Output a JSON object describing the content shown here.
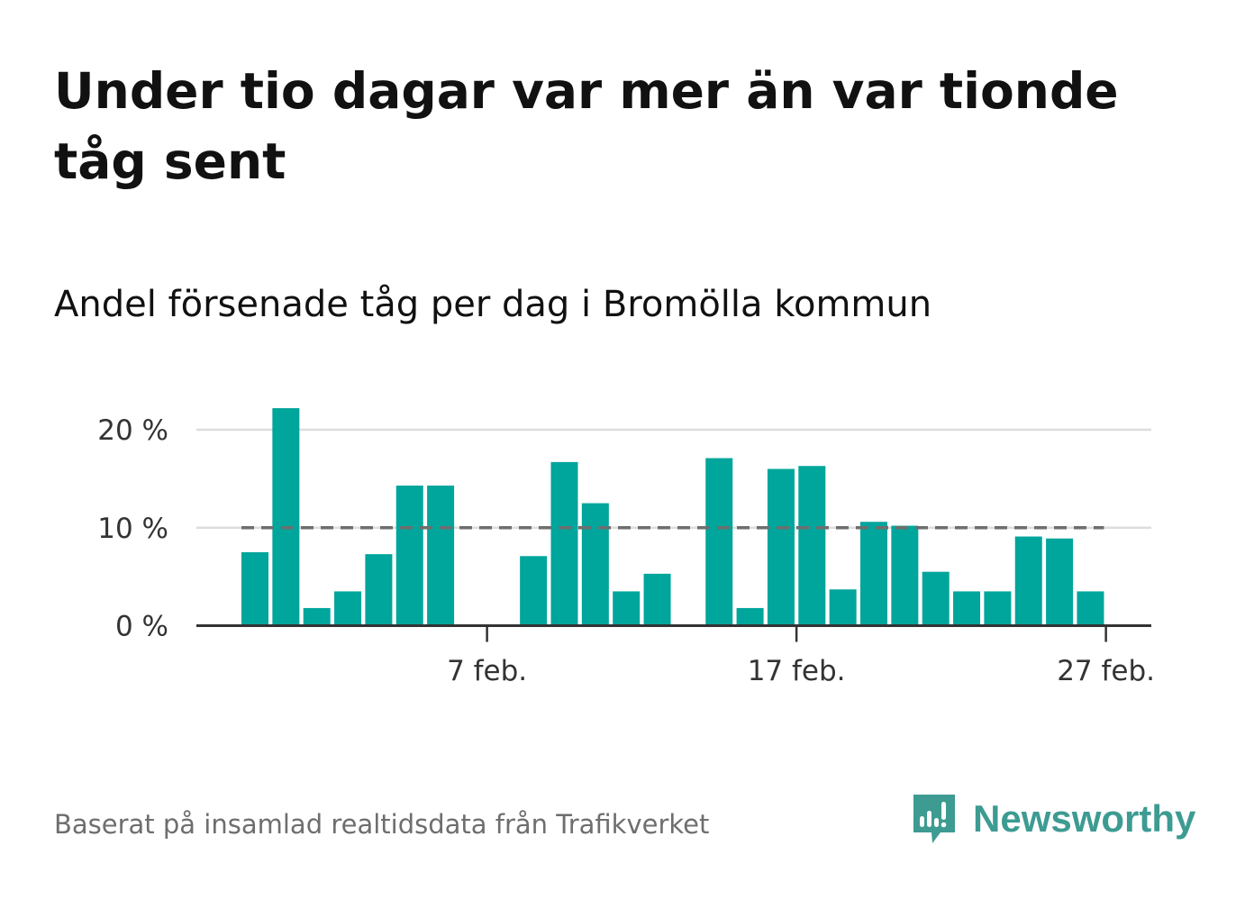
{
  "title": "Under tio dagar var mer än var tionde tåg sent",
  "subtitle": "Andel försenade tåg per dag i Bromölla kommun",
  "footer": "Baserat på insamlad realtidsdata från Trafikverket",
  "brand": {
    "name": "Newsworthy",
    "icon": "newsworthy-logo-icon",
    "color": "#3d9b92"
  },
  "colors": {
    "bar": "#00a59b",
    "reference": "#6e6e6e",
    "grid": "#dddddd",
    "axis": "#333333"
  },
  "chart_data": {
    "type": "bar",
    "title": "Under tio dagar var mer än var tionde tåg sent",
    "subtitle": "Andel försenade tåg per dag i Bromölla kommun",
    "xlabel": "",
    "ylabel": "",
    "categories": [
      "2025-01-30",
      "2025-01-31",
      "2025-02-01",
      "2025-02-02",
      "2025-02-03",
      "2025-02-04",
      "2025-02-05",
      "2025-02-06",
      "2025-02-07",
      "2025-02-08",
      "2025-02-09",
      "2025-02-10",
      "2025-02-11",
      "2025-02-12",
      "2025-02-13",
      "2025-02-14",
      "2025-02-15",
      "2025-02-16",
      "2025-02-17",
      "2025-02-18",
      "2025-02-19",
      "2025-02-20",
      "2025-02-21",
      "2025-02-22",
      "2025-02-23",
      "2025-02-24",
      "2025-02-25",
      "2025-02-26",
      "2025-02-27",
      "2025-02-28"
    ],
    "values": [
      7.5,
      22.2,
      1.8,
      3.5,
      7.3,
      14.3,
      14.3,
      0,
      0,
      7.1,
      16.7,
      12.5,
      3.5,
      5.3,
      0,
      17.1,
      1.8,
      16.0,
      16.3,
      3.7,
      10.6,
      10.2,
      5.5,
      3.5,
      3.5,
      9.1,
      8.9,
      3.5,
      null,
      null
    ],
    "reference_line": {
      "value": 10,
      "style": "dashed"
    },
    "x_ticks": [
      {
        "index": 8,
        "label": "7 feb."
      },
      {
        "index": 18,
        "label": "17 feb."
      },
      {
        "index": 28,
        "label": "27 feb."
      }
    ],
    "y_ticks": [
      {
        "value": 0,
        "label": "0 %"
      },
      {
        "value": 10,
        "label": "10 %"
      },
      {
        "value": 20,
        "label": "20 %"
      }
    ],
    "ylim": [
      0,
      20
    ],
    "grid": true,
    "legend": "none"
  }
}
